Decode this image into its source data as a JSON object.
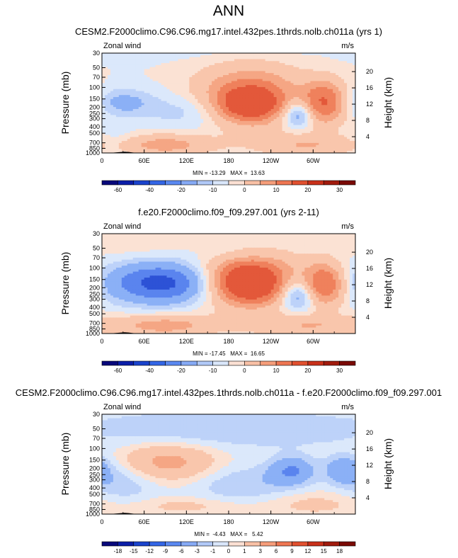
{
  "page": {
    "title": "ANN"
  },
  "colors": {
    "ramp_fill": [
      "#08087a",
      "#0b1ea8",
      "#1a43cc",
      "#3366e6",
      "#5a88f0",
      "#86aaf5",
      "#b1c9f7",
      "#d9e6fa",
      "#fbe0d3",
      "#f8c0a5",
      "#f59d7a",
      "#ee7652",
      "#e1502f",
      "#c8301a",
      "#a11b0d",
      "#7a0a05"
    ],
    "shade": [
      "#2d52d6",
      "#5a84ee",
      "#8bb0f6",
      "#bdd2f9",
      "#dbe8fb",
      "#fbe2d4",
      "#f9c6ac",
      "#f5a684",
      "#ef815c",
      "#e3583a"
    ]
  },
  "chart_data": [
    {
      "type": "heatmap",
      "title": "CESM2.F2000climo.C96.C96.mg17.intel.432pes.1thrds.nolb.ch011a (yrs 1)",
      "left_label": "Zonal wind",
      "right_label": "m/s",
      "ylabel": "Pressure (mb)",
      "ylabel_right": "Height (km)",
      "x_ticks": [
        "0",
        "60E",
        "120E",
        "180",
        "120W",
        "60W"
      ],
      "x_tick_lon": [
        0,
        60,
        120,
        180,
        240,
        300
      ],
      "y_ticks": [
        "30",
        "50",
        "70",
        "100",
        "150",
        "200",
        "250",
        "300",
        "400",
        "500",
        "700",
        "850",
        "1000"
      ],
      "y_tick_p": [
        30,
        50,
        70,
        100,
        150,
        200,
        250,
        300,
        400,
        500,
        700,
        850,
        1000
      ],
      "y_right_ticks": [
        "20",
        "16",
        "12",
        "8",
        "4"
      ],
      "y_right_km": [
        20,
        16,
        12,
        8,
        4
      ],
      "min_max_text": "MIN = -13.29   MAX =  13.63",
      "min": -13.29,
      "max": 13.63,
      "colorbar_labels": [
        "-60",
        "-40",
        "-20",
        "-10",
        "0",
        "10",
        "20",
        "30"
      ],
      "colorbar_label_pos": [
        1,
        3,
        5,
        7,
        9,
        11,
        13,
        15
      ],
      "blobs": [
        {
          "lon": 130,
          "p": 15,
          "v": -1.5,
          "sl": 150,
          "sp": 0.45
        },
        {
          "lon": 30,
          "p": 170,
          "v": -2.5,
          "sl": 30,
          "sp": 0.35
        },
        {
          "lon": 130,
          "p": 230,
          "v": -2,
          "sl": 45,
          "sp": 0.45
        },
        {
          "lon": 280,
          "p": 250,
          "v": -5,
          "sl": 18,
          "sp": 0.35
        },
        {
          "lon": 210,
          "p": 140,
          "v": 7,
          "sl": 50,
          "sp": 0.7
        },
        {
          "lon": 210,
          "p": 175,
          "v": 10,
          "sl": 25,
          "sp": 0.35
        },
        {
          "lon": 315,
          "p": 170,
          "v": 8,
          "sl": 20,
          "sp": 0.5
        },
        {
          "lon": 90,
          "p": 750,
          "v": 4,
          "sl": 45,
          "sp": 0.25
        },
        {
          "lon": 290,
          "p": 750,
          "v": 3,
          "sl": 50,
          "sp": 0.25
        },
        {
          "lon": 20,
          "p": 650,
          "v": -1,
          "sl": 20,
          "sp": 0.3
        }
      ]
    },
    {
      "type": "heatmap",
      "title": "f.e20.F2000climo.f09_f09.297.001 (yrs 2-11)",
      "left_label": "Zonal wind",
      "right_label": "m/s",
      "ylabel": "Pressure (mb)",
      "ylabel_right": "Height (km)",
      "x_ticks": [
        "0",
        "60E",
        "120E",
        "180",
        "120W",
        "60W"
      ],
      "x_tick_lon": [
        0,
        60,
        120,
        180,
        240,
        300
      ],
      "y_ticks": [
        "30",
        "50",
        "70",
        "100",
        "150",
        "200",
        "250",
        "300",
        "400",
        "500",
        "700",
        "850",
        "1000"
      ],
      "y_tick_p": [
        30,
        50,
        70,
        100,
        150,
        200,
        250,
        300,
        400,
        500,
        700,
        850,
        1000
      ],
      "y_right_ticks": [
        "20",
        "16",
        "12",
        "8",
        "4"
      ],
      "y_right_km": [
        20,
        16,
        12,
        8,
        4
      ],
      "min_max_text": "MIN = -17.45   MAX =  16.65",
      "min": -17.45,
      "max": 16.65,
      "colorbar_labels": [
        "-60",
        "-40",
        "-20",
        "-10",
        "0",
        "10",
        "20",
        "30"
      ],
      "colorbar_label_pos": [
        1,
        3,
        5,
        7,
        9,
        11,
        13,
        15
      ],
      "blobs": [
        {
          "lon": 40,
          "p": 35,
          "v": 1,
          "sl": 60,
          "sp": 0.4
        },
        {
          "lon": 200,
          "p": 60,
          "v": -1.5,
          "sl": 40,
          "sp": 0.25
        },
        {
          "lon": 85,
          "p": 170,
          "v": -7,
          "sl": 55,
          "sp": 0.5
        },
        {
          "lon": 280,
          "p": 250,
          "v": -5,
          "sl": 20,
          "sp": 0.4
        },
        {
          "lon": 210,
          "p": 150,
          "v": 9,
          "sl": 45,
          "sp": 0.65
        },
        {
          "lon": 210,
          "p": 175,
          "v": 10,
          "sl": 22,
          "sp": 0.35
        },
        {
          "lon": 315,
          "p": 180,
          "v": 8,
          "sl": 20,
          "sp": 0.5
        },
        {
          "lon": 90,
          "p": 750,
          "v": 4,
          "sl": 50,
          "sp": 0.25
        },
        {
          "lon": 290,
          "p": 750,
          "v": 3,
          "sl": 55,
          "sp": 0.25
        }
      ]
    },
    {
      "type": "heatmap",
      "title": "CESM2.F2000climo.C96.C96.mg17.intel.432pes.1thrds.nolb.ch011a - f.e20.F2000climo.f09_f09.297.001",
      "left_label": "Zonal wind",
      "right_label": "m/s",
      "ylabel": "Pressure (mb)",
      "ylabel_right": "Height (km)",
      "x_ticks": [
        "0",
        "60E",
        "120E",
        "180",
        "120W",
        "60W"
      ],
      "x_tick_lon": [
        0,
        60,
        120,
        180,
        240,
        300
      ],
      "y_ticks": [
        "30",
        "50",
        "70",
        "100",
        "150",
        "200",
        "250",
        "300",
        "400",
        "500",
        "700",
        "850",
        "1000"
      ],
      "y_tick_p": [
        30,
        50,
        70,
        100,
        150,
        200,
        250,
        300,
        400,
        500,
        700,
        850,
        1000
      ],
      "y_right_ticks": [
        "20",
        "16",
        "12",
        "8",
        "4"
      ],
      "y_right_km": [
        20,
        16,
        12,
        8,
        4
      ],
      "min_max_text": "MIN =  -4.43   MAX =   5.42",
      "min": -4.43,
      "max": 5.42,
      "colorbar_labels": [
        "-18",
        "-15",
        "-12",
        "-9",
        "-6",
        "-3",
        "-1",
        "0",
        "1",
        "3",
        "6",
        "9",
        "12",
        "15",
        "18"
      ],
      "colorbar_label_pos": [
        1,
        2,
        3,
        4,
        5,
        6,
        7,
        8,
        9,
        10,
        11,
        12,
        13,
        14,
        15
      ],
      "blobs": [
        {
          "lon": 180,
          "p": 50,
          "v": -2,
          "sl": 180,
          "sp": 0.5
        },
        {
          "lon": 90,
          "p": 160,
          "v": 4,
          "sl": 50,
          "sp": 0.45
        },
        {
          "lon": 270,
          "p": 220,
          "v": -4,
          "sl": 22,
          "sp": 0.35
        },
        {
          "lon": 345,
          "p": 210,
          "v": -3.5,
          "sl": 20,
          "sp": 0.35
        },
        {
          "lon": 30,
          "p": 300,
          "v": -2,
          "sl": 35,
          "sp": 0.6
        },
        {
          "lon": 200,
          "p": 350,
          "v": -2,
          "sl": 50,
          "sp": 0.5
        },
        {
          "lon": 120,
          "p": 750,
          "v": 1.5,
          "sl": 60,
          "sp": 0.2
        },
        {
          "lon": 300,
          "p": 700,
          "v": 1.5,
          "sl": 50,
          "sp": 0.3
        }
      ]
    }
  ]
}
